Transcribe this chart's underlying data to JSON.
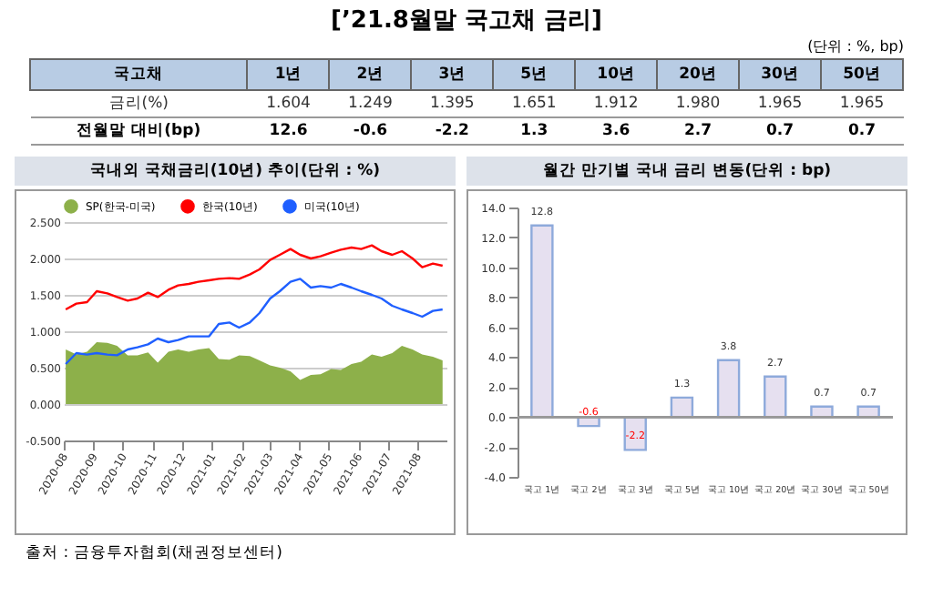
{
  "chart_data": [
    {
      "type": "other",
      "title": "[’21.8월말 국고채 금리]",
      "subtitle": "(단위 : %, bp)",
      "xlabel": "국고채",
      "categories": [
        "1년",
        "2년",
        "3년",
        "5년",
        "10년",
        "20년",
        "30년",
        "50년"
      ],
      "data_labels": true,
      "series": [
        {
          "name": "금리(%)",
          "values": [
            1.604,
            1.249,
            1.395,
            1.651,
            1.912,
            1.98,
            1.965,
            1.965
          ],
          "value_labels": [
            "1.604",
            "1.249",
            "1.395",
            "1.651",
            "1.912",
            "1.980",
            "1.965",
            "1.965"
          ]
        },
        {
          "name": "전월말 대비(bp)",
          "values": [
            12.6,
            -0.6,
            -2.2,
            1.3,
            3.6,
            2.7,
            0.7,
            0.7
          ]
        }
      ]
    },
    {
      "type": "line",
      "title": "국내외 국채금리(10년) 추이(단위 : %)",
      "grid": "y",
      "legend": "top",
      "x": [
        "2020-08-03",
        "2020-08-14",
        "2020-08-25",
        "2020-09-04",
        "2020-09-15",
        "2020-09-25",
        "2020-10-06",
        "2020-10-16",
        "2020-10-27",
        "2020-11-06",
        "2020-11-17",
        "2020-11-27",
        "2020-12-08",
        "2020-12-18",
        "2020-12-29",
        "2021-01-08",
        "2021-01-19",
        "2021-01-29",
        "2021-02-09",
        "2021-02-19",
        "2021-03-02",
        "2021-03-12",
        "2021-03-23",
        "2021-04-02",
        "2021-04-13",
        "2021-04-23",
        "2021-05-04",
        "2021-05-14",
        "2021-05-25",
        "2021-06-04",
        "2021-06-15",
        "2021-06-25",
        "2021-07-06",
        "2021-07-16",
        "2021-07-27",
        "2021-08-06",
        "2021-08-17",
        "2021-08-27"
      ],
      "xlim": [
        "2020-08-01",
        "2021-08-31"
      ],
      "xticks": [
        "2020-08",
        "2020-09",
        "2020-10",
        "2020-11",
        "2020-12",
        "2021-01",
        "2021-02",
        "2021-03",
        "2021-04",
        "2021-05",
        "2021-06",
        "2021-07",
        "2021-08"
      ],
      "ylim": [
        -0.5,
        2.5
      ],
      "yticks": [
        {
          "value": -0.5,
          "label": "-0.500"
        },
        {
          "value": 0,
          "label": "0.000"
        },
        {
          "value": 0.5,
          "label": "0.500"
        },
        {
          "value": 1,
          "label": "1.000"
        },
        {
          "value": 1.5,
          "label": "1.500"
        },
        {
          "value": 2,
          "label": "2.000"
        },
        {
          "value": 2.5,
          "label": "2.500"
        }
      ],
      "series": [
        {
          "name": "SP(한국-미국)",
          "type": "area",
          "color": "#8db04a",
          "values": [
            0.75,
            0.68,
            0.72,
            0.85,
            0.84,
            0.8,
            0.67,
            0.67,
            0.71,
            0.57,
            0.72,
            0.75,
            0.72,
            0.75,
            0.77,
            0.62,
            0.61,
            0.67,
            0.66,
            0.6,
            0.53,
            0.5,
            0.45,
            0.33,
            0.4,
            0.41,
            0.48,
            0.47,
            0.55,
            0.58,
            0.68,
            0.65,
            0.7,
            0.8,
            0.75,
            0.68,
            0.65,
            0.6
          ]
        },
        {
          "name": "한국(10년)",
          "color": "#ff0000",
          "values": [
            1.3,
            1.38,
            1.4,
            1.55,
            1.52,
            1.47,
            1.42,
            1.45,
            1.53,
            1.47,
            1.57,
            1.63,
            1.65,
            1.68,
            1.7,
            1.72,
            1.73,
            1.72,
            1.78,
            1.85,
            1.98,
            2.05,
            2.13,
            2.05,
            2.0,
            2.03,
            2.08,
            2.12,
            2.15,
            2.13,
            2.18,
            2.1,
            2.05,
            2.1,
            2.0,
            1.88,
            1.93,
            1.9
          ]
        },
        {
          "name": "미국(10년)",
          "color": "#1f5fff",
          "values": [
            0.55,
            0.7,
            0.68,
            0.7,
            0.68,
            0.67,
            0.75,
            0.78,
            0.82,
            0.9,
            0.85,
            0.88,
            0.93,
            0.93,
            0.93,
            1.1,
            1.12,
            1.05,
            1.12,
            1.25,
            1.45,
            1.55,
            1.68,
            1.72,
            1.6,
            1.62,
            1.6,
            1.65,
            1.6,
            1.55,
            1.5,
            1.45,
            1.35,
            1.3,
            1.25,
            1.2,
            1.28,
            1.3
          ]
        }
      ]
    },
    {
      "type": "bar",
      "title": "월간 만기별 국내 금리 변동(단위 : bp)",
      "categories": [
        "국고 1년",
        "국고 2년",
        "국고 3년",
        "국고 5년",
        "국고 10년",
        "국고 20년",
        "국고 30년",
        "국고 50년"
      ],
      "values": [
        12.8,
        -0.6,
        -2.2,
        1.3,
        3.8,
        2.7,
        0.7,
        0.7
      ],
      "color": "#e6e0f0",
      "data_labels": true,
      "ylim": [
        -4,
        14
      ],
      "yticks": [
        {
          "value": -4,
          "label": "-4.0"
        },
        {
          "value": -2,
          "label": "-2.0"
        },
        {
          "value": 0,
          "label": "0.0"
        },
        {
          "value": 2,
          "label": "2.0"
        },
        {
          "value": 4,
          "label": "4.0"
        },
        {
          "value": 6,
          "label": "6.0"
        },
        {
          "value": 8,
          "label": "8.0"
        },
        {
          "value": 10,
          "label": "10.0"
        },
        {
          "value": 12,
          "label": "12.0"
        },
        {
          "value": 14,
          "label": "14.0"
        }
      ],
      "annotations": [
        "출처 : 금융투자협회(채권정보센터)"
      ]
    }
  ]
}
